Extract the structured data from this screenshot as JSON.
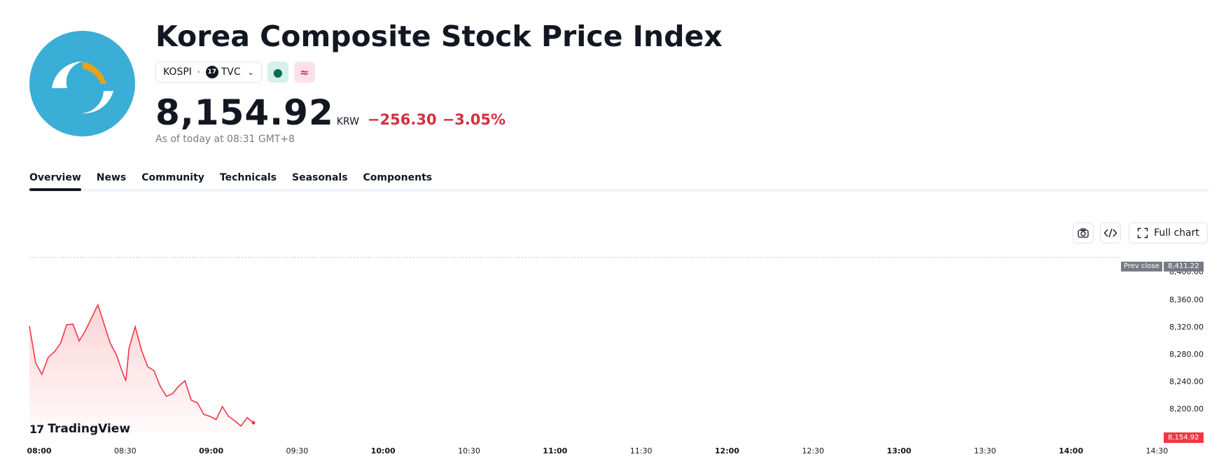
{
  "header": {
    "title": "Korea Composite Stock Price Index",
    "symbol": "KOSPI",
    "exchange": "TVC",
    "exchange_badge": "17",
    "separator": "·",
    "status_open_icon": "●",
    "status_delayed_icon": "≈",
    "price": "8,154.92",
    "currency": "KRW",
    "change": "−256.30",
    "change_percent": "−3.05%",
    "as_of": "As of today at 08:31 GMT+8"
  },
  "colors": {
    "accent_down": "#d32f3f",
    "line": "#f23645",
    "logo_bg": "#3aaed6",
    "logo_accent": "#e8a21c"
  },
  "tabs": [
    {
      "label": "Overview",
      "active": true
    },
    {
      "label": "News",
      "active": false
    },
    {
      "label": "Community",
      "active": false
    },
    {
      "label": "Technicals",
      "active": false
    },
    {
      "label": "Seasonals",
      "active": false
    },
    {
      "label": "Components",
      "active": false
    }
  ],
  "toolbar": {
    "camera_icon": "camera-icon",
    "embed_icon": "code-icon",
    "full_chart_label": "Full chart"
  },
  "chart_data": {
    "type": "area",
    "prev_close_label": "Prev close",
    "prev_close_value": "8,411.22",
    "last_price_value": "8,154.92",
    "watermark": "TradingView",
    "watermark_mark": "17",
    "y_ticks": [
      "8,400.00",
      "8,360.00",
      "8,320.00",
      "8,280.00",
      "8,240.00",
      "8,200.00"
    ],
    "x_ticks": [
      {
        "label": "08:00",
        "bold": true
      },
      {
        "label": "08:30",
        "bold": false
      },
      {
        "label": "09:00",
        "bold": true
      },
      {
        "label": "09:30",
        "bold": false
      },
      {
        "label": "10:00",
        "bold": true
      },
      {
        "label": "10:30",
        "bold": false
      },
      {
        "label": "11:00",
        "bold": true
      },
      {
        "label": "11:30",
        "bold": false
      },
      {
        "label": "12:00",
        "bold": true
      },
      {
        "label": "12:30",
        "bold": false
      },
      {
        "label": "13:00",
        "bold": true
      },
      {
        "label": "13:30",
        "bold": false
      },
      {
        "label": "14:00",
        "bold": true
      },
      {
        "label": "14:30",
        "bold": false
      }
    ],
    "ylim": [
      8140,
      8420
    ],
    "x_range_minutes": [
      0,
      390
    ],
    "series": [
      {
        "x": [
          0,
          2,
          4,
          6,
          8,
          10,
          12,
          14,
          16,
          18,
          20,
          22,
          24,
          26,
          28,
          30,
          31,
          32,
          34,
          36,
          38,
          40,
          42,
          44,
          46,
          48,
          50,
          52,
          54,
          56,
          58,
          60,
          62,
          64,
          66,
          68,
          70,
          72
        ],
        "y": [
          8305,
          8248,
          8230,
          8256,
          8265,
          8278,
          8307,
          8308,
          8282,
          8298,
          8318,
          8338,
          8308,
          8278,
          8260,
          8232,
          8220,
          8270,
          8304,
          8268,
          8242,
          8236,
          8212,
          8196,
          8200,
          8212,
          8220,
          8190,
          8186,
          8168,
          8165,
          8160,
          8180,
          8165,
          8158,
          8150,
          8163,
          8155
        ]
      }
    ]
  }
}
